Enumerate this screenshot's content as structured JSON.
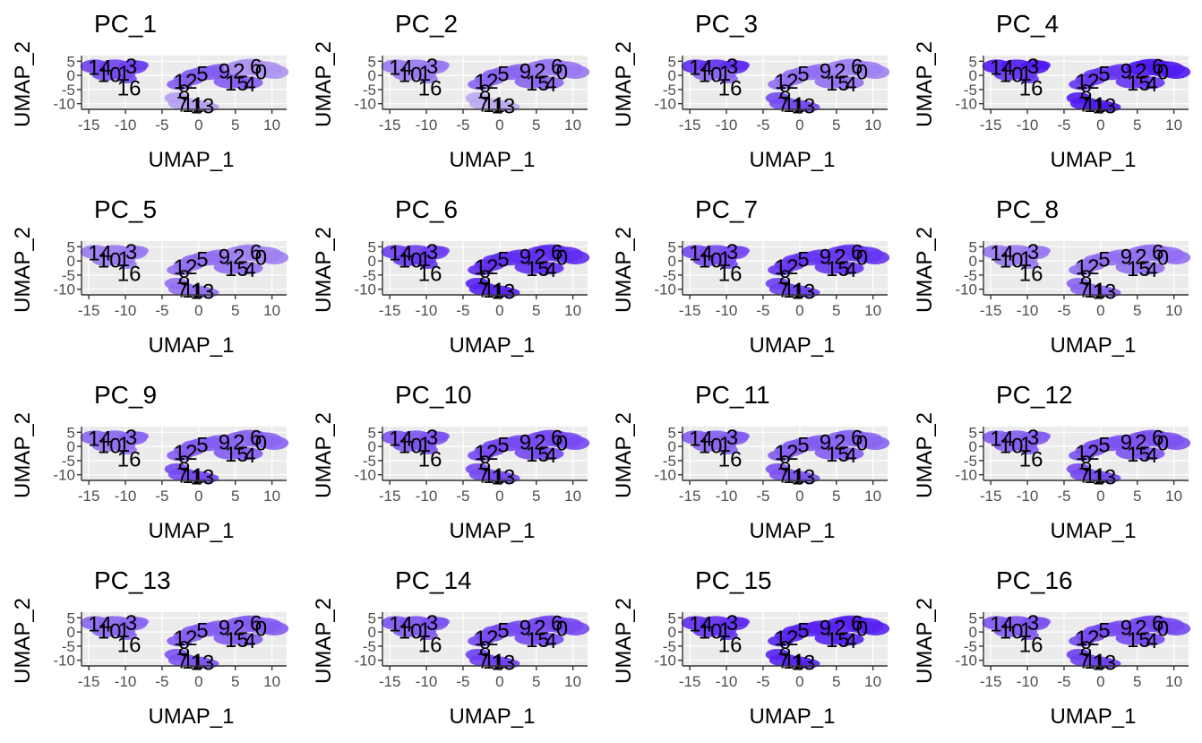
{
  "chart_data": {
    "type": "scatter",
    "layout": {
      "rows": 4,
      "cols": 4
    },
    "shared": {
      "xlabel": "UMAP_1",
      "ylabel": "UMAP_2",
      "xlim": [
        -16,
        12
      ],
      "ylim": [
        -12,
        7
      ],
      "xticks": [
        -15,
        -10,
        -5,
        0,
        5,
        10
      ],
      "xtick_labels": [
        "-15",
        "-10",
        "-5",
        "0",
        "5",
        "10"
      ],
      "yticks": [
        5,
        0,
        -5,
        -10
      ],
      "ytick_labels": [
        "5",
        "0",
        "-5",
        "-10"
      ],
      "grid": true,
      "panel_background": "#ebebeb",
      "gridline_color": "#ffffff",
      "color_low": "#d8cff0",
      "color_high": "#4a0ff2",
      "cluster_labels": [
        {
          "label": "14",
          "x": -13.5,
          "y": 2.8
        },
        {
          "label": "3",
          "x": -9.2,
          "y": 3.2
        },
        {
          "label": "10",
          "x": -12.2,
          "y": 0.2
        },
        {
          "label": "1",
          "x": -10.2,
          "y": 0.6
        },
        {
          "label": "16",
          "x": -9.5,
          "y": -4.6
        },
        {
          "label": "12",
          "x": -1.8,
          "y": -2.2
        },
        {
          "label": "5",
          "x": 0.5,
          "y": 0.5
        },
        {
          "label": "9",
          "x": 3.5,
          "y": 1.5
        },
        {
          "label": "2",
          "x": 5.5,
          "y": 1.5
        },
        {
          "label": "6",
          "x": 7.8,
          "y": 3.0
        },
        {
          "label": "0",
          "x": 8.5,
          "y": 1.2
        },
        {
          "label": "15",
          "x": 5.2,
          "y": -2.8
        },
        {
          "label": "4",
          "x": 7.0,
          "y": -3.2
        },
        {
          "label": "8",
          "x": -2.0,
          "y": -6.0
        },
        {
          "label": "7",
          "x": -2.2,
          "y": -10.2
        },
        {
          "label": "11",
          "x": -0.8,
          "y": -10.4
        },
        {
          "label": "13",
          "x": 0.5,
          "y": -10.9
        }
      ]
    },
    "panels": [
      {
        "title": "PC_1",
        "intensity": [
          0.75,
          0.7,
          0.6,
          0.3,
          0.25
        ]
      },
      {
        "title": "PC_2",
        "intensity": [
          0.45,
          0.45,
          0.55,
          0.45,
          0.2
        ]
      },
      {
        "title": "PC_3",
        "intensity": [
          0.85,
          0.55,
          0.5,
          0.4,
          0.7
        ]
      },
      {
        "title": "PC_4",
        "intensity": [
          0.95,
          0.8,
          0.8,
          0.95,
          0.95
        ]
      },
      {
        "title": "PC_5",
        "intensity": [
          0.45,
          0.45,
          0.5,
          0.4,
          0.5
        ]
      },
      {
        "title": "PC_6",
        "intensity": [
          0.75,
          0.8,
          0.85,
          0.85,
          0.9
        ]
      },
      {
        "title": "PC_7",
        "intensity": [
          0.7,
          0.7,
          0.8,
          0.8,
          0.75
        ]
      },
      {
        "title": "PC_8",
        "intensity": [
          0.45,
          0.45,
          0.5,
          0.5,
          0.55
        ]
      },
      {
        "title": "PC_9",
        "intensity": [
          0.55,
          0.5,
          0.6,
          0.55,
          0.7
        ]
      },
      {
        "title": "PC_10",
        "intensity": [
          0.65,
          0.65,
          0.7,
          0.7,
          0.7
        ]
      },
      {
        "title": "PC_11",
        "intensity": [
          0.6,
          0.55,
          0.6,
          0.55,
          0.65
        ]
      },
      {
        "title": "PC_12",
        "intensity": [
          0.6,
          0.6,
          0.65,
          0.65,
          0.7
        ]
      },
      {
        "title": "PC_13",
        "intensity": [
          0.55,
          0.55,
          0.6,
          0.6,
          0.65
        ]
      },
      {
        "title": "PC_14",
        "intensity": [
          0.65,
          0.6,
          0.7,
          0.7,
          0.75
        ]
      },
      {
        "title": "PC_15",
        "intensity": [
          0.85,
          0.8,
          0.9,
          0.9,
          0.9
        ]
      },
      {
        "title": "PC_16",
        "intensity": [
          0.65,
          0.6,
          0.7,
          0.7,
          0.75
        ]
      }
    ]
  }
}
